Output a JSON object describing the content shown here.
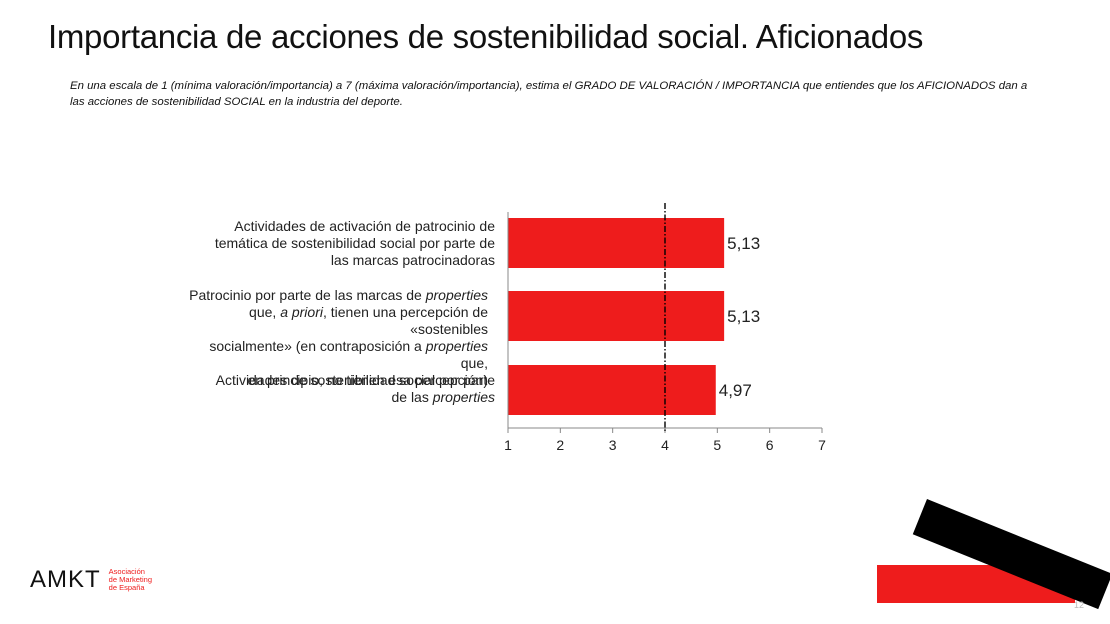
{
  "page": {
    "title": "Importancia de acciones de sostenibilidad social. Aficionados",
    "subtitle": "En una escala de 1 (mínima valoración/importancia) a 7 (máxima valoración/importancia), estima el GRADO DE VALORACIÓN / IMPORTANCIA que entiendes que los AFICIONADOS dan a las acciones de sostenibilidad SOCIAL en la industria del deporte.",
    "page_number": "12"
  },
  "labels": {
    "cat1": [
      "Actividades de activación de patrocinio de",
      "temática de sostenibilidad social por parte de",
      "las marcas patrocinadoras"
    ],
    "cat2_l1a": "Patrocinio por parte de las marcas de ",
    "cat2_l1b": "properties",
    "cat2_l2a": "que, ",
    "cat2_l2b": "a priori",
    "cat2_l2c": ", tienen una percepción de «sostenibles",
    "cat2_l3a": "socialmente» (en contraposición a ",
    "cat2_l3b": "properties",
    "cat2_l3c": " que,",
    "cat2_l4": "en principio, no tienen esa percepción)",
    "cat3_l1": "Actividades de sostenibilidad social por parte",
    "cat3_l2a": "de las ",
    "cat3_l2b": "properties"
  },
  "chart_data": {
    "type": "bar",
    "orientation": "horizontal",
    "categories": [
      "Actividades de activación de patrocinio de temática de sostenibilidad social por parte de las marcas patrocinadoras",
      "Patrocinio por parte de las marcas de properties que, a priori, tienen una percepción de «sostenibles socialmente» (en contraposición a properties que, en principio, no tienen esa percepción)",
      "Actividades de sostenibilidad social por parte de las properties"
    ],
    "values": [
      5.13,
      5.13,
      4.97
    ],
    "value_labels": [
      "5,13",
      "5,13",
      "4,97"
    ],
    "xlim": [
      1,
      7
    ],
    "xticks": [
      "1",
      "2",
      "3",
      "4",
      "5",
      "6",
      "7"
    ],
    "reference_line": 4,
    "bar_color": "#ee1c1c",
    "grid": false,
    "legend": "none"
  },
  "branding": {
    "logo": "AMKT",
    "org_line1": "Asociación",
    "org_line2": "de Marketing",
    "org_line3": "de España",
    "accent": "#ee1c1c"
  }
}
